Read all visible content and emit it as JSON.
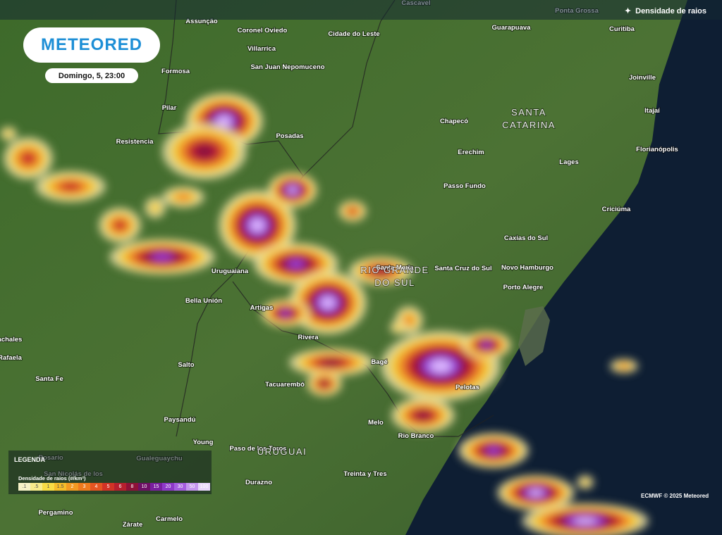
{
  "header": {
    "brand": "METEORED",
    "datetime": "Domingo, 5, 23:00",
    "layer": "Densidade de raios"
  },
  "legend": {
    "title": "LEGENDA",
    "subtitle": "Densidade de raios (#/km²)",
    "steps": [
      {
        "label": ".1",
        "color": "#f7f3c8"
      },
      {
        "label": ".5",
        "color": "#f9ec8a"
      },
      {
        "label": "1",
        "color": "#f8dc45"
      },
      {
        "label": "1.5",
        "color": "#f5bd2a"
      },
      {
        "label": "2",
        "color": "#f29a22"
      },
      {
        "label": "3",
        "color": "#ee7a1e"
      },
      {
        "label": "4",
        "color": "#e45522"
      },
      {
        "label": "5",
        "color": "#d23326"
      },
      {
        "label": "6",
        "color": "#b71f2e"
      },
      {
        "label": "8",
        "color": "#8e1138"
      },
      {
        "label": "10",
        "color": "#6e1066"
      },
      {
        "label": "15",
        "color": "#7a1fa0"
      },
      {
        "label": "20",
        "color": "#8e39c8"
      },
      {
        "label": "30",
        "color": "#a65ee0"
      },
      {
        "label": "50",
        "color": "#c596ef"
      },
      {
        "label": "100",
        "color": "#e8d6fb"
      }
    ]
  },
  "credit": "ECMWF © 2025 Meteored",
  "regions": [
    {
      "lines": [
        "SANTA",
        "CATARINA"
      ]
    },
    {
      "lines": [
        "RIO GRANDE",
        "DO SUL"
      ]
    },
    {
      "lines": [
        "URUGUAI"
      ]
    }
  ],
  "places": [
    "Cascavel",
    "Ponta Grossa",
    "Assunção",
    "Coronel Oviedo",
    "Cidade do Leste",
    "Guarapuava",
    "Curitiba",
    "Villarrica",
    "San Juan Nepomuceno",
    "Formosa",
    "Joinville",
    "Pilar",
    "Itajaí",
    "Chapecó",
    "Posadas",
    "Resistencia",
    "Erechim",
    "Florianópolis",
    "Lages",
    "Passo Fundo",
    "Criciúma",
    "Caxias do Sul",
    "Uruguaiana",
    "Santa Maria",
    "Santa Cruz do Sul",
    "Novo Hamburgo",
    "Porto Alegre",
    "Bella Unión",
    "Artigas",
    "Rivera",
    "achales",
    "Rafaela",
    "Salto",
    "Bagé",
    "Santa Fe",
    "Tacuarembó",
    "Pelotas",
    "Melo",
    "Paysandú",
    "Rio Branco",
    "Young",
    "Paso de los Toros",
    "Rosario",
    "Gualeguaychu",
    "San Nicolás de los",
    "Treinta y Tres",
    "Durazno",
    "Pergamino",
    "Zárate",
    "Carmelo"
  ]
}
